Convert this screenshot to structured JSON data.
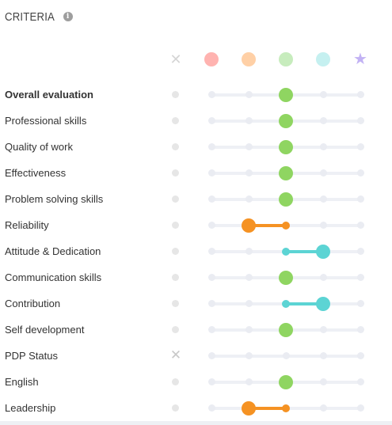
{
  "header": {
    "title": "CRITERIA",
    "info_icon": "info-icon"
  },
  "legend": {
    "na_icon": "close-icon",
    "levels": [
      {
        "color": "#ffb3b0"
      },
      {
        "color": "#ffd0a6"
      },
      {
        "color": "#c7ecbd"
      },
      {
        "color": "#c5f0f0"
      },
      {
        "color": "#c2b2f4",
        "icon": "star-icon"
      }
    ]
  },
  "colors": {
    "green": "#8fd561",
    "orange": "#f59223",
    "teal": "#5cd4d4"
  },
  "rows": [
    {
      "label": "Overall evaluation",
      "bold": true,
      "na": false,
      "value": 3
    },
    {
      "label": "Professional skills",
      "na": false,
      "value": 3
    },
    {
      "label": "Quality of work",
      "na": false,
      "value": 3
    },
    {
      "label": "Effectiveness",
      "na": false,
      "value": 3
    },
    {
      "label": "Problem solving skills",
      "na": false,
      "value": 3
    },
    {
      "label": "Reliability",
      "na": false,
      "value": 2,
      "from": 3,
      "color": "orange"
    },
    {
      "label": "Attitude & Dedication",
      "na": false,
      "value": 4,
      "from": 3,
      "color": "teal"
    },
    {
      "label": "Communication skills",
      "na": false,
      "value": 3
    },
    {
      "label": "Contribution",
      "na": false,
      "value": 4,
      "from": 3,
      "color": "teal"
    },
    {
      "label": "Self development",
      "na": false,
      "value": 3
    },
    {
      "label": "PDP Status",
      "na": true,
      "value": null
    },
    {
      "label": "English",
      "na": false,
      "value": 3
    },
    {
      "label": "Leadership",
      "na": false,
      "value": 2,
      "from": 3,
      "color": "orange"
    }
  ]
}
